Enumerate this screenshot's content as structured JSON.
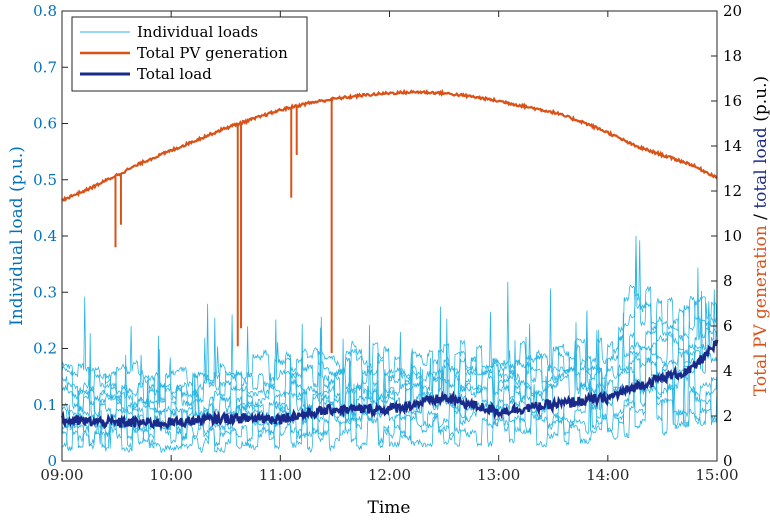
{
  "chart_data": {
    "type": "line",
    "xlabel": "Time",
    "ylabel_left": "Individual load (p.u.)",
    "ylabel_right_parts": [
      {
        "text": "Total PV generation",
        "color": "#D95319"
      },
      {
        "text": " / ",
        "color": "#000000"
      },
      {
        "text": "total load",
        "color": "#1A2A8A"
      },
      {
        "text": " (p.u.)",
        "color": "#000000"
      }
    ],
    "x_ticks": [
      "09:00",
      "10:00",
      "11:00",
      "12:00",
      "13:00",
      "14:00",
      "15:00"
    ],
    "x_range_hours": [
      9,
      15
    ],
    "y_left_range": [
      0,
      0.8
    ],
    "y_left_ticks": [
      "0",
      "0.1",
      "0.2",
      "0.3",
      "0.4",
      "0.5",
      "0.6",
      "0.7",
      "0.8"
    ],
    "y_right_range": [
      0,
      20
    ],
    "y_right_ticks": [
      "0",
      "2",
      "4",
      "6",
      "8",
      "10",
      "12",
      "14",
      "16",
      "18",
      "20"
    ],
    "left_axis_color": "#0072BD",
    "right_axis_color": "#000000",
    "legend_placement": "top-left",
    "grid": false,
    "series": [
      {
        "name": "Individual loads",
        "axis": "left",
        "color": "#2BB5E2",
        "envelope": {
          "x_hours": [
            9.0,
            9.5,
            10.0,
            10.5,
            11.0,
            11.5,
            12.0,
            12.5,
            13.0,
            13.5,
            14.0,
            14.25,
            14.5,
            15.0
          ],
          "typical_range": [
            [
              0.02,
              0.18
            ],
            [
              0.02,
              0.18
            ],
            [
              0.02,
              0.17
            ],
            [
              0.02,
              0.18
            ],
            [
              0.02,
              0.2
            ],
            [
              0.02,
              0.22
            ],
            [
              0.03,
              0.2
            ],
            [
              0.03,
              0.21
            ],
            [
              0.03,
              0.22
            ],
            [
              0.03,
              0.22
            ],
            [
              0.04,
              0.22
            ],
            [
              0.05,
              0.35
            ],
            [
              0.05,
              0.3
            ],
            [
              0.05,
              0.32
            ]
          ]
        }
      },
      {
        "name": "Total PV generation",
        "axis": "right",
        "color": "#D95319",
        "x_hours": [
          9.0,
          9.25,
          9.5,
          9.75,
          10.0,
          10.25,
          10.5,
          10.75,
          11.0,
          11.25,
          11.5,
          11.75,
          12.0,
          12.25,
          12.5,
          12.75,
          13.0,
          13.25,
          13.5,
          13.75,
          14.0,
          14.25,
          14.5,
          14.75,
          15.0
        ],
        "values": [
          11.6,
          12.1,
          12.7,
          13.3,
          13.8,
          14.3,
          14.8,
          15.2,
          15.6,
          15.9,
          16.1,
          16.25,
          16.35,
          16.4,
          16.35,
          16.2,
          16.0,
          15.75,
          15.5,
          15.1,
          14.6,
          14.0,
          13.6,
          13.2,
          12.6
        ],
        "dips": [
          {
            "x_hour": 9.49,
            "min": 9.5
          },
          {
            "x_hour": 9.54,
            "min": 10.5
          },
          {
            "x_hour": 10.61,
            "min": 5.1
          },
          {
            "x_hour": 10.64,
            "min": 5.9
          },
          {
            "x_hour": 11.1,
            "min": 11.7
          },
          {
            "x_hour": 11.15,
            "min": 13.6
          },
          {
            "x_hour": 11.47,
            "min": 4.8
          }
        ]
      },
      {
        "name": "Total load",
        "axis": "right",
        "color": "#1A2A8A",
        "x_hours": [
          9.0,
          9.5,
          10.0,
          10.5,
          11.0,
          11.5,
          12.0,
          12.5,
          13.0,
          13.5,
          14.0,
          14.25,
          14.5,
          14.75,
          15.0
        ],
        "values": [
          1.8,
          1.7,
          1.7,
          1.9,
          1.9,
          2.3,
          2.3,
          2.8,
          2.2,
          2.5,
          2.8,
          3.3,
          3.7,
          4.0,
          5.2
        ]
      }
    ]
  }
}
